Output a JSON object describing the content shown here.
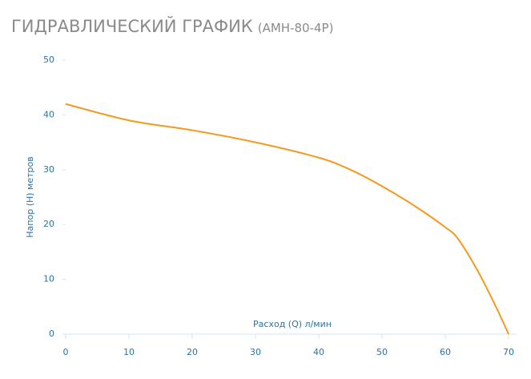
{
  "chart_data": {
    "type": "line",
    "title": "ГИДРАВЛИЧЕСКИЙ ГРАФИК",
    "subtitle": "(АМН-80-4Р)",
    "x_label": "Расход (Q) л/мин",
    "y_label": "Напор (Н) метров",
    "x": [
      0,
      10,
      20,
      30,
      40,
      45,
      50,
      55,
      60,
      62,
      65,
      68,
      70
    ],
    "series": [
      {
        "name": "АМН-80-4Р",
        "color": "#f39a1e",
        "values": [
          42,
          39,
          37.2,
          35,
          32.2,
          30,
          27,
          23.5,
          19.5,
          17.4,
          11.8,
          5,
          0
        ]
      }
    ],
    "xlim": [
      0,
      70
    ],
    "xticks": [
      0,
      10,
      20,
      30,
      40,
      50,
      60,
      70
    ],
    "ylim": [
      0,
      50
    ],
    "yticks": [
      0,
      10,
      20,
      30,
      40,
      50
    ]
  }
}
